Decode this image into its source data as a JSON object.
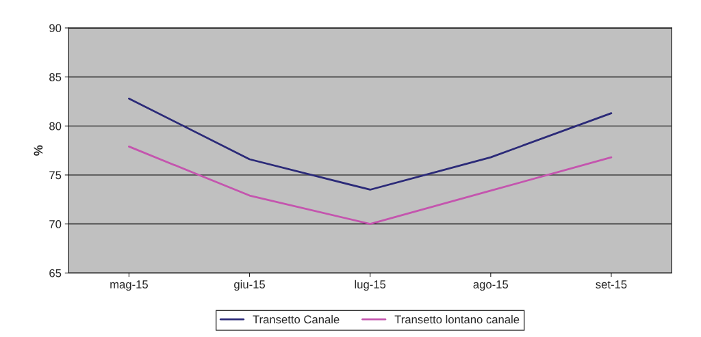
{
  "chart_data": {
    "type": "line",
    "ylabel": "%",
    "categories": [
      "mag-15",
      "giu-15",
      "lug-15",
      "ago-15",
      "set-15"
    ],
    "series": [
      {
        "name": "Transetto Canale",
        "color": "#2b2a78",
        "values": [
          82.8,
          76.6,
          73.5,
          76.8,
          81.3
        ]
      },
      {
        "name": "Transetto lontano canale",
        "color": "#c455ae",
        "values": [
          77.9,
          72.9,
          70.0,
          73.4,
          76.8
        ]
      }
    ],
    "ylim": [
      65,
      90
    ],
    "yticks": [
      65,
      70,
      75,
      80,
      85,
      90
    ],
    "grid": "y",
    "legend": "bottom",
    "marker": "none",
    "line_style": "solid"
  }
}
